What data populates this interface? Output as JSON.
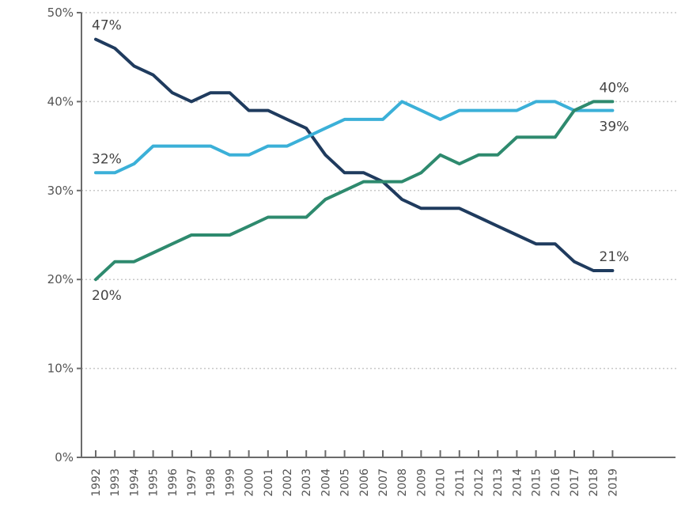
{
  "chart_data": {
    "type": "line",
    "title": "",
    "xlabel": "",
    "ylabel": "",
    "x": [
      "1992",
      "1993",
      "1994",
      "1995",
      "1996",
      "1997",
      "1998",
      "1999",
      "2000",
      "2001",
      "2002",
      "2003",
      "2004",
      "2005",
      "2006",
      "2007",
      "2008",
      "2009",
      "2010",
      "2011",
      "2012",
      "2013",
      "2014",
      "2015",
      "2016",
      "2017",
      "2018",
      "2019"
    ],
    "ylim": [
      0,
      50
    ],
    "yticks": [
      "0%",
      "10%",
      "20%",
      "30%",
      "40%",
      "50%"
    ],
    "grid": "horizontal dotted",
    "colors": {
      "series_dark": "#1f3b5e",
      "series_light": "#3bb0d8",
      "series_green": "#2e8a6e"
    },
    "series": [
      {
        "color_key": "series_dark",
        "values": [
          47,
          46,
          44,
          43,
          41,
          40,
          41,
          41,
          39,
          39,
          38,
          37,
          34,
          32,
          32,
          31,
          29,
          28,
          28,
          28,
          27,
          26,
          25,
          24,
          24,
          22,
          21,
          21
        ]
      },
      {
        "color_key": "series_light",
        "values": [
          32,
          32,
          33,
          35,
          35,
          35,
          35,
          34,
          34,
          35,
          35,
          36,
          37,
          38,
          38,
          38,
          40,
          39,
          38,
          39,
          39,
          39,
          39,
          40,
          40,
          39,
          39,
          39
        ]
      },
      {
        "color_key": "series_green",
        "values": [
          20,
          22,
          22,
          23,
          24,
          25,
          25,
          25,
          26,
          27,
          27,
          27,
          29,
          30,
          31,
          31,
          31,
          32,
          34,
          33,
          34,
          34,
          36,
          36,
          36,
          39,
          40,
          40
        ]
      }
    ],
    "annotations": [
      {
        "text": "47%",
        "series": 0,
        "index": 0,
        "pos": "above"
      },
      {
        "text": "32%",
        "series": 1,
        "index": 0,
        "pos": "above"
      },
      {
        "text": "20%",
        "series": 2,
        "index": 0,
        "pos": "below"
      },
      {
        "text": "40%",
        "series": 2,
        "index": 27,
        "pos": "above"
      },
      {
        "text": "39%",
        "series": 1,
        "index": 27,
        "pos": "below"
      },
      {
        "text": "21%",
        "series": 0,
        "index": 27,
        "pos": "above"
      }
    ]
  }
}
